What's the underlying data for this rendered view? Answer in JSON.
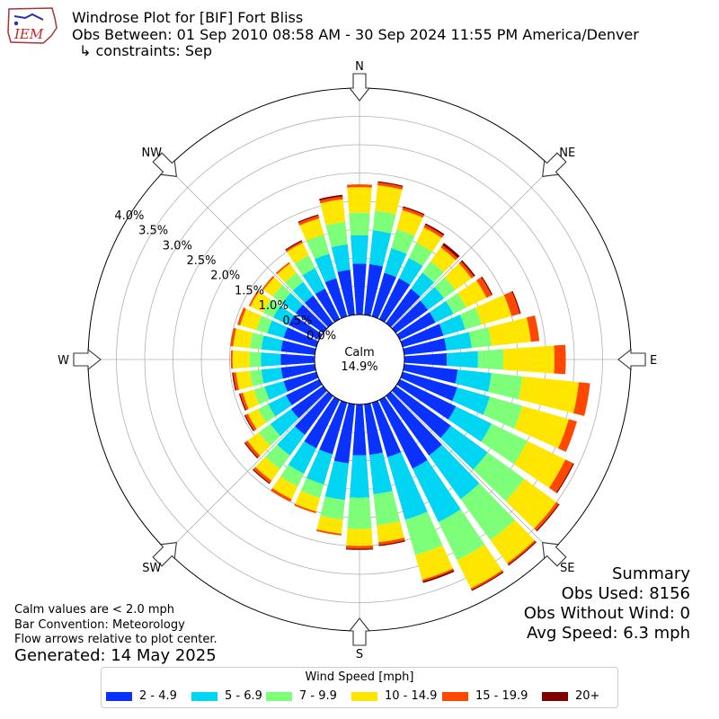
{
  "header": {
    "title": "Windrose Plot for [BIF] Fort Bliss",
    "subtitle": "Obs Between: 01 Sep 2010 08:58 AM - 30 Sep 2024 11:55 PM America/Denver",
    "constraints": "↳ constraints: Sep",
    "logo_text": "IEM"
  },
  "notes": {
    "calm": "Calm values are < 2.0 mph",
    "bar_convention": "Bar Convention: Meteorology",
    "flow": "Flow arrows relative to plot center.",
    "generated": "Generated: 14 May 2025"
  },
  "summary": {
    "heading": "Summary",
    "obs_used": "Obs Used: 8156",
    "obs_without_wind": "Obs Without Wind: 0",
    "avg_speed": "Avg Speed: 6.3 mph"
  },
  "center": {
    "label": "Calm",
    "value": "14.9%"
  },
  "compass": [
    "N",
    "NE",
    "E",
    "SE",
    "S",
    "SW",
    "W",
    "NW"
  ],
  "radial_ticks": [
    "0.0%",
    "0.5%",
    "1.0%",
    "1.5%",
    "2.0%",
    "2.5%",
    "3.0%",
    "3.5%",
    "4.0%"
  ],
  "legend": {
    "title": "Wind Speed [mph]",
    "bins": [
      {
        "label": "2 - 4.9",
        "color": "#0a32ff"
      },
      {
        "label": "5 - 6.9",
        "color": "#00d6f4"
      },
      {
        "label": "7 - 9.9",
        "color": "#7dff7a"
      },
      {
        "label": "10 - 14.9",
        "color": "#ffe600"
      },
      {
        "label": "15 - 19.9",
        "color": "#ff4700"
      },
      {
        "label": "20+",
        "color": "#7f0000"
      }
    ]
  },
  "chart_data": {
    "type": "windrose",
    "calm_percent": 14.9,
    "r_max_percent": 4.0,
    "direction_step_deg": 10,
    "directions_deg": [
      0,
      10,
      20,
      30,
      40,
      50,
      60,
      70,
      80,
      90,
      100,
      110,
      120,
      130,
      140,
      150,
      160,
      170,
      180,
      190,
      200,
      210,
      220,
      230,
      240,
      250,
      260,
      270,
      280,
      290,
      300,
      310,
      320,
      330,
      340,
      350
    ],
    "series": [
      {
        "name": "2 - 4.9",
        "values": [
          0.9,
          0.9,
          0.8,
          0.8,
          0.75,
          0.7,
          0.7,
          0.75,
          0.75,
          0.75,
          0.95,
          1.0,
          1.1,
          1.2,
          1.3,
          1.35,
          1.0,
          0.9,
          0.9,
          1.05,
          0.95,
          0.95,
          0.85,
          0.7,
          0.65,
          0.6,
          0.6,
          0.6,
          0.6,
          0.6,
          0.6,
          0.6,
          0.6,
          0.6,
          0.7,
          0.8
        ]
      },
      {
        "name": "5 - 6.9",
        "values": [
          0.5,
          0.6,
          0.45,
          0.4,
          0.35,
          0.35,
          0.35,
          0.4,
          0.45,
          0.55,
          0.6,
          0.6,
          0.7,
          0.8,
          0.95,
          1.05,
          1.15,
          0.7,
          0.75,
          0.65,
          0.55,
          0.5,
          0.45,
          0.45,
          0.35,
          0.35,
          0.35,
          0.35,
          0.35,
          0.3,
          0.3,
          0.3,
          0.3,
          0.4,
          0.45,
          0.45
        ]
      },
      {
        "name": "7 - 9.9",
        "values": [
          0.4,
          0.35,
          0.35,
          0.3,
          0.25,
          0.25,
          0.25,
          0.3,
          0.35,
          0.45,
          0.55,
          0.6,
          0.7,
          0.8,
          0.9,
          0.75,
          0.65,
          0.55,
          0.55,
          0.35,
          0.25,
          0.25,
          0.3,
          0.25,
          0.2,
          0.2,
          0.2,
          0.2,
          0.2,
          0.2,
          0.2,
          0.2,
          0.2,
          0.25,
          0.35,
          0.4
        ]
      },
      {
        "name": "10 - 14.9",
        "values": [
          0.45,
          0.45,
          0.35,
          0.3,
          0.3,
          0.35,
          0.4,
          0.55,
          0.7,
          0.9,
          1.0,
          0.85,
          0.75,
          0.7,
          0.5,
          0.55,
          0.45,
          0.3,
          0.3,
          0.25,
          0.25,
          0.25,
          0.25,
          0.25,
          0.2,
          0.2,
          0.25,
          0.3,
          0.3,
          0.3,
          0.25,
          0.2,
          0.2,
          0.25,
          0.3,
          0.4
        ]
      },
      {
        "name": "15 - 19.9",
        "values": [
          0.05,
          0.05,
          0.05,
          0.05,
          0.05,
          0.05,
          0.1,
          0.15,
          0.15,
          0.2,
          0.2,
          0.15,
          0.15,
          0.05,
          0.03,
          0.03,
          0.03,
          0.05,
          0.05,
          0.03,
          0.03,
          0.05,
          0.05,
          0.05,
          0.05,
          0.05,
          0.05,
          0.03,
          0.05,
          0.05,
          0.03,
          0.03,
          0.03,
          0.03,
          0.05,
          0.05
        ]
      },
      {
        "name": "20+",
        "values": [
          0,
          0.02,
          0.02,
          0.03,
          0.05,
          0.03,
          0.02,
          0.02,
          0,
          0,
          0,
          0,
          0.02,
          0.02,
          0.02,
          0.02,
          0.03,
          0.02,
          0.02,
          0,
          0,
          0,
          0.02,
          0.02,
          0.02,
          0.02,
          0.02,
          0,
          0,
          0,
          0,
          0,
          0,
          0.02,
          0.02,
          0.03
        ]
      }
    ]
  }
}
